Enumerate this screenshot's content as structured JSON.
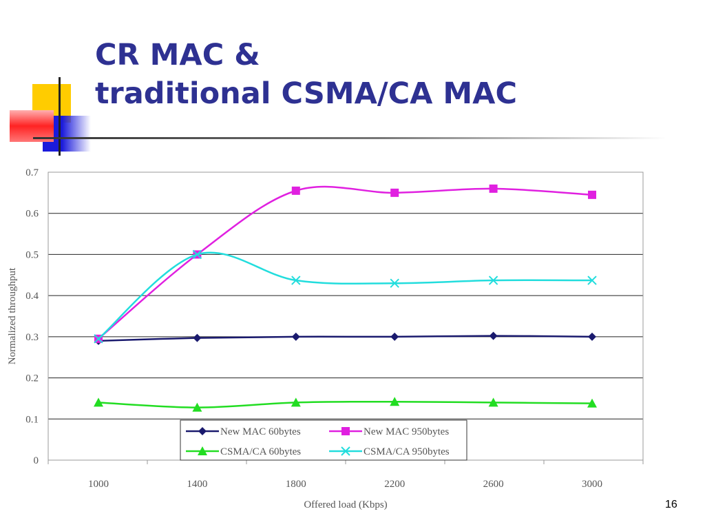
{
  "slide": {
    "title_line1": "CR MAC &",
    "title_line2": "traditional CSMA/CA MAC",
    "slide_number": "16"
  },
  "colors": {
    "title": "#2e3192",
    "deco_yellow": "#ffcc00",
    "deco_red": "#ff2222",
    "deco_blue": "#1a1adb"
  },
  "chart_data": {
    "type": "line",
    "xlabel": "Offered load (Kbps)",
    "ylabel": "Normalized throughput",
    "categories": [
      "1000",
      "1400",
      "1800",
      "2200",
      "2600",
      "3000"
    ],
    "yticks": [
      "0",
      "0.1",
      "0.2",
      "0.3",
      "0.4",
      "0.5",
      "0.6",
      "0.7"
    ],
    "ylim": [
      0,
      0.7
    ],
    "grid": true,
    "legend_position": "bottom-center",
    "series": [
      {
        "name": "New MAC 60bytes",
        "color": "#1a1a6e",
        "marker": "diamond",
        "values": [
          0.29,
          0.297,
          0.3,
          0.3,
          0.302,
          0.3
        ]
      },
      {
        "name": "New MAC 950bytes",
        "color": "#e020e0",
        "marker": "square",
        "values": [
          0.295,
          0.5,
          0.655,
          0.65,
          0.66,
          0.645
        ]
      },
      {
        "name": "CSMA/CA 60bytes",
        "color": "#22dd22",
        "marker": "triangle",
        "values": [
          0.14,
          0.128,
          0.14,
          0.142,
          0.14,
          0.138
        ]
      },
      {
        "name": "CSMA/CA 950bytes",
        "color": "#22dddd",
        "marker": "x",
        "values": [
          0.295,
          0.5,
          0.437,
          0.43,
          0.437,
          0.437
        ]
      }
    ]
  }
}
